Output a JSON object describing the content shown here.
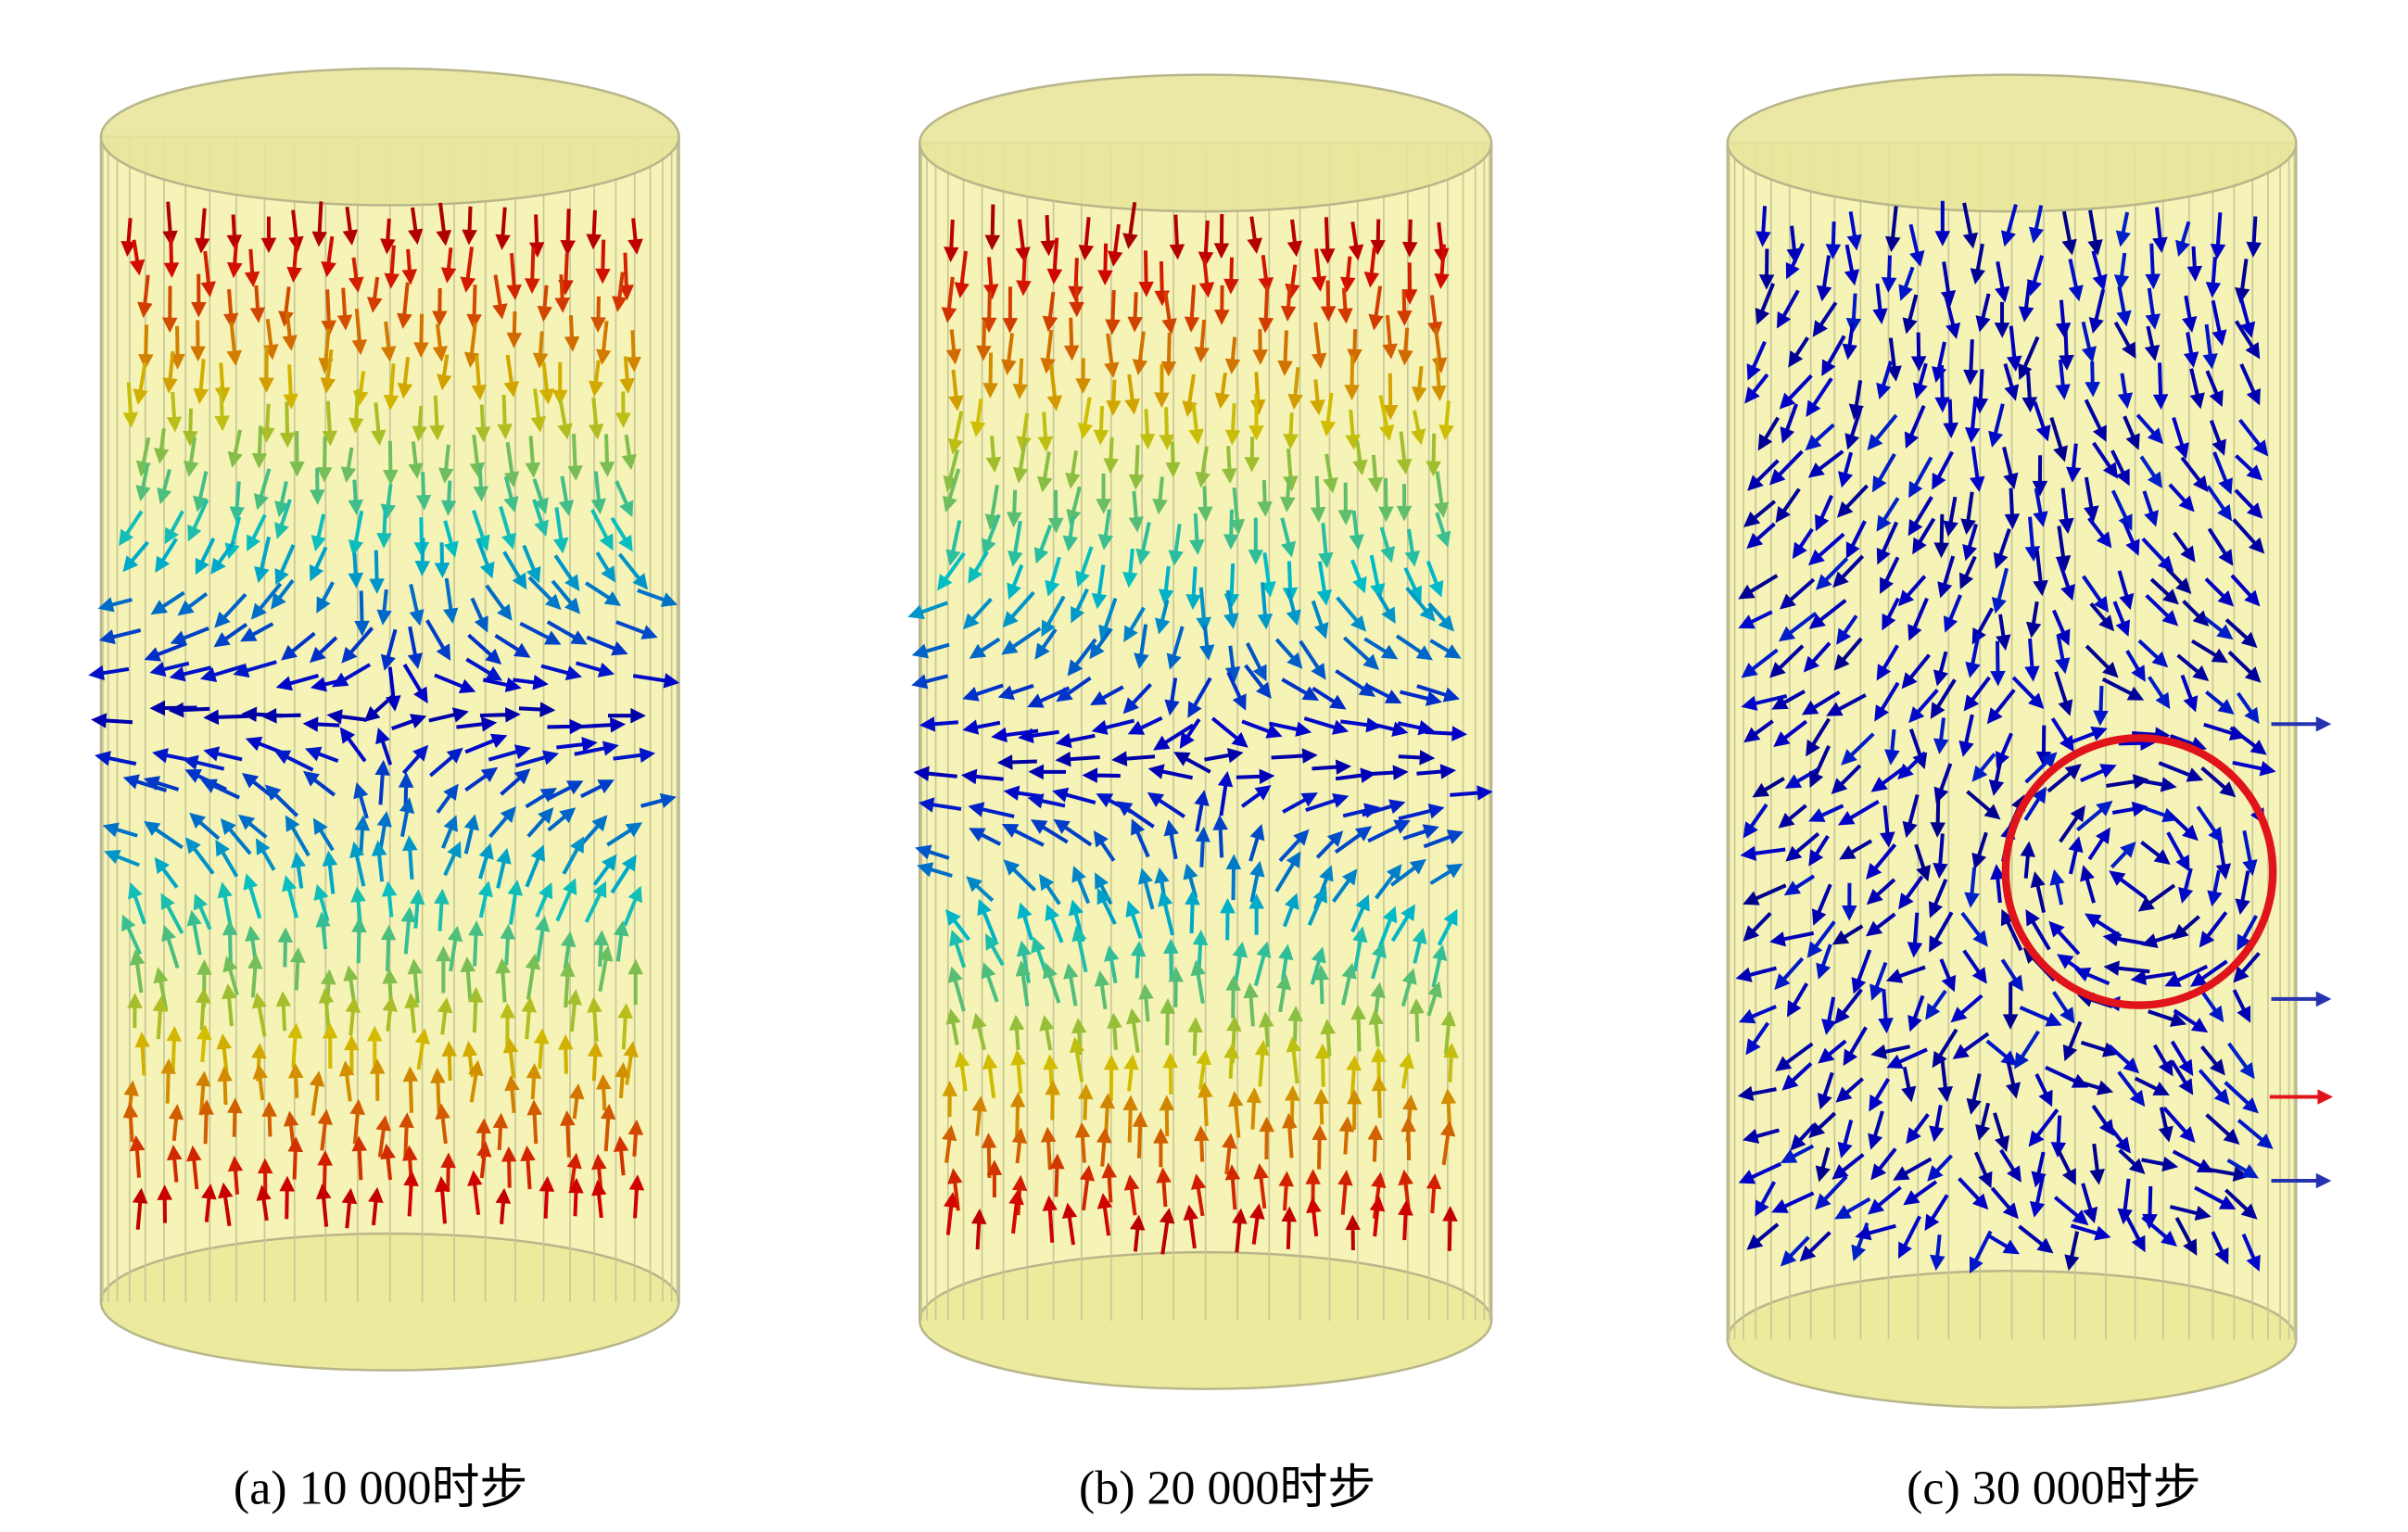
{
  "panels": [
    {
      "caption": "(a) 10 000时步"
    },
    {
      "caption": "(b) 20 000时步"
    },
    {
      "caption": "(c) 30 000时步"
    }
  ]
}
